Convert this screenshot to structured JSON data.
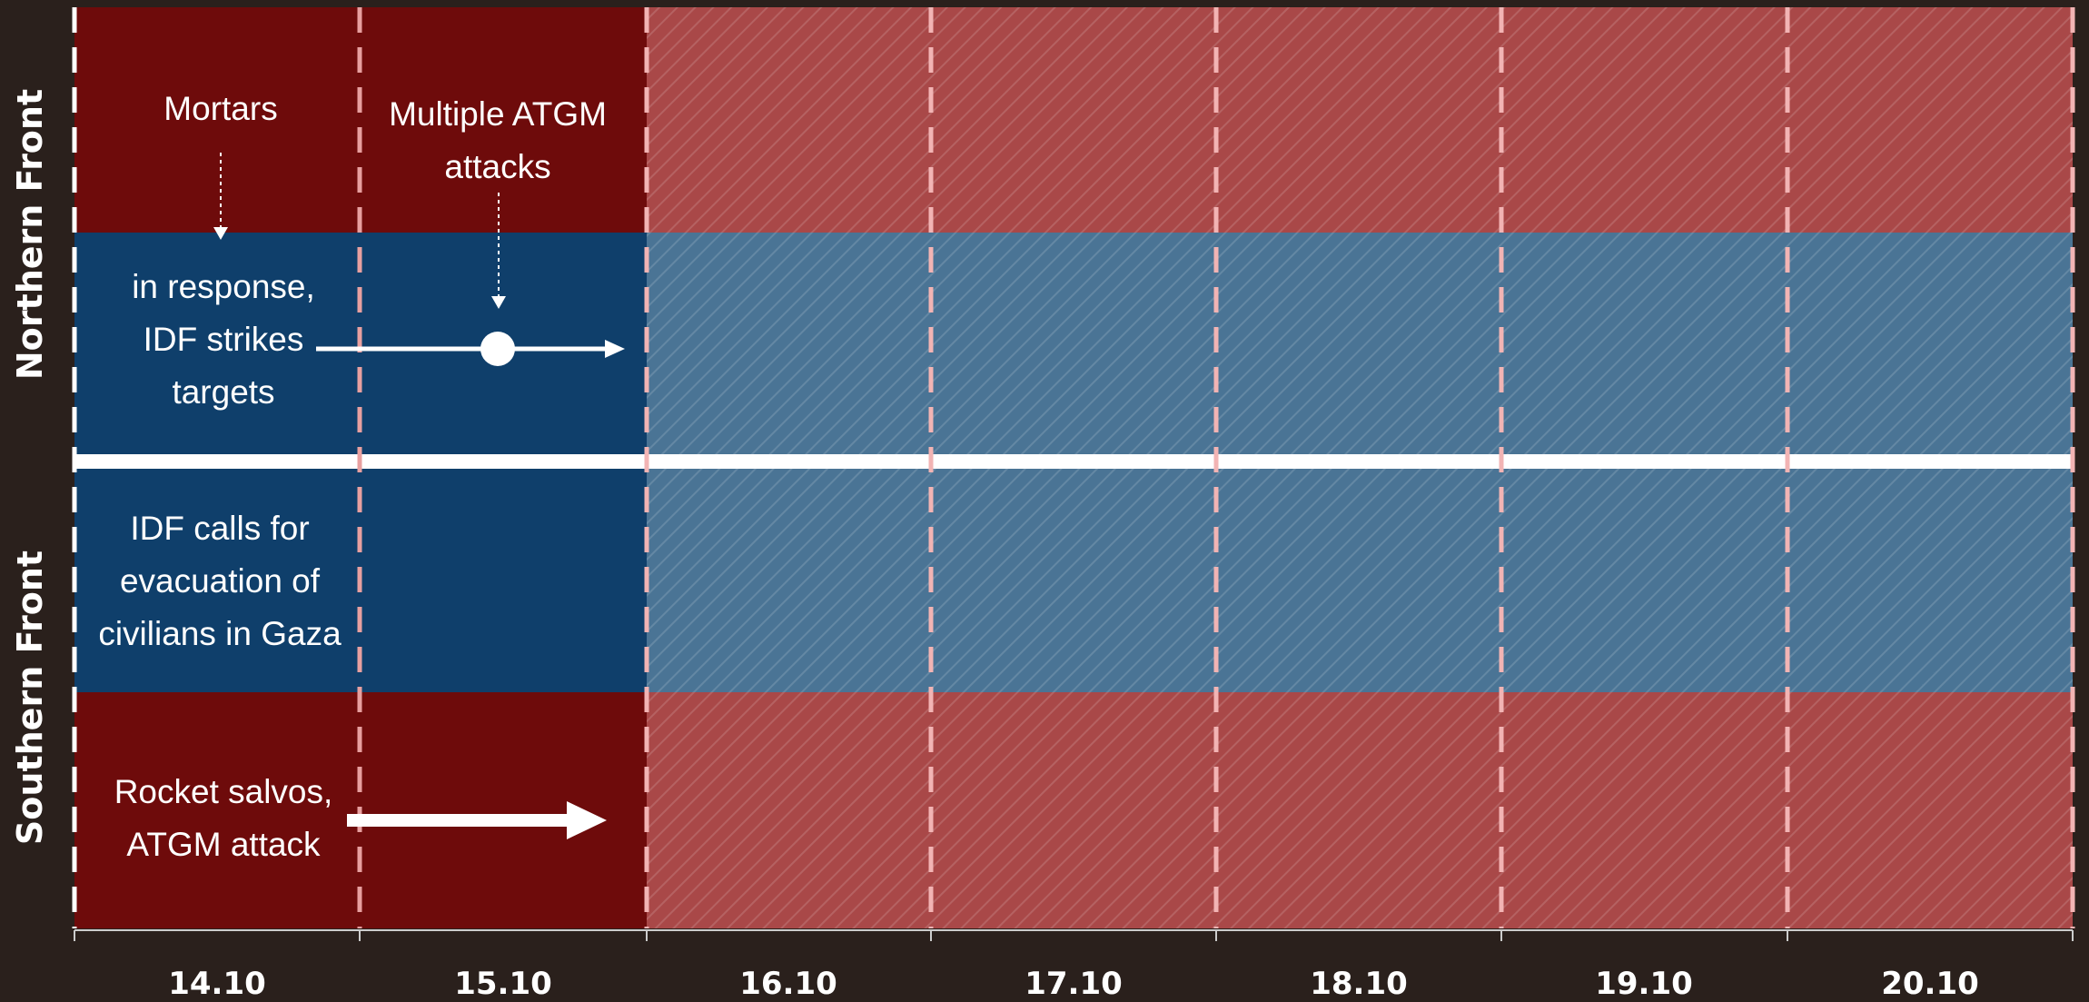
{
  "fronts": {
    "northern": "Northern Front",
    "southern": "Southern Front"
  },
  "dates": [
    "14.10",
    "15.10",
    "16.10",
    "17.10",
    "18.10",
    "19.10",
    "20.10"
  ],
  "events": {
    "mortars": "Mortars",
    "atgm_north": [
      "Multiple ATGM",
      "attacks"
    ],
    "idf_strikes": [
      "in response,",
      "IDF strikes",
      "targets"
    ],
    "idf_evacuation": [
      "IDF calls for",
      "evacuation of",
      "civilians in Gaza"
    ],
    "rocket_salvos": [
      "Rocket salvos,",
      "ATGM attack"
    ]
  },
  "colors": {
    "background": "#2a201c",
    "red_active": "#6e0b0b",
    "blue_active": "#0f3f6b",
    "red_faded": "#a94848",
    "blue_faded": "#4a7495",
    "divider": "#ffffff"
  }
}
